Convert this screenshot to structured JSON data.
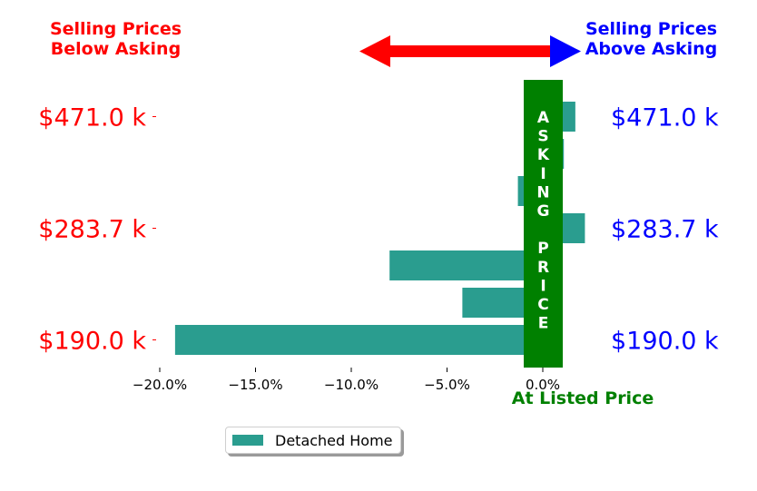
{
  "header": {
    "left_line1": "Selling Prices",
    "left_line2": "Below Asking",
    "right_line1": "Selling Prices",
    "right_line2": "Above Asking"
  },
  "asking_band_text": "ASKING PRICE",
  "at_listed_label": "At Listed Price",
  "legend": {
    "label": "Detached Home"
  },
  "colors": {
    "bar": "#2a9d8f",
    "band": "#008000",
    "left_text": "#ff0000",
    "right_text": "#0000ff",
    "arrow": "#ff0000",
    "arrow_head_right": "#0000ff"
  },
  "chart_data": {
    "type": "bar",
    "orientation": "horizontal",
    "series": [
      {
        "name": "Detached Home",
        "values": [
          -19.2,
          -4.2,
          -8.0,
          2.2,
          -1.3,
          1.1,
          1.7
        ]
      }
    ],
    "price_labels_left": [
      "$190.0 k",
      "$283.7 k",
      "$471.0 k"
    ],
    "price_labels_right": [
      "$190.0 k",
      "$283.7 k",
      "$471.0 k"
    ],
    "price_label_rows": [
      0,
      3,
      6
    ],
    "xticks": [
      -20,
      -15,
      -10,
      -5,
      0
    ],
    "xtick_labels": [
      "−20.0%",
      "−15.0%",
      "−10.0%",
      "−5.0%",
      "0.0%"
    ],
    "xlim": [
      -20,
      2.5
    ],
    "legend_position": "lower-center"
  }
}
